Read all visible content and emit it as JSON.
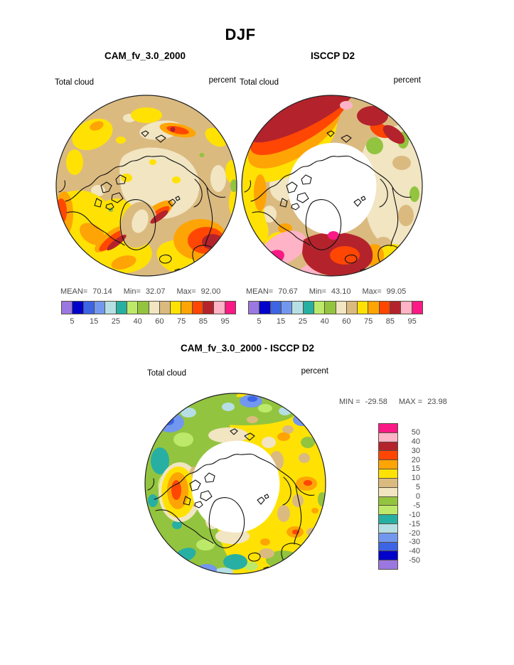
{
  "figure_title": "DJF",
  "panels": [
    {
      "id": "cam",
      "title": "CAM_fv_3.0_2000",
      "var_label": "Total cloud",
      "units": "percent",
      "stats": {
        "mean_label": "MEAN=",
        "mean": "70.14",
        "min_label": "Min=",
        "min": "32.07",
        "max_label": "Max=",
        "max": "92.00"
      }
    },
    {
      "id": "isccp",
      "title": "ISCCP D2",
      "var_label": "Total cloud",
      "units": "percent",
      "stats": {
        "mean_label": "MEAN=",
        "mean": "70.67",
        "min_label": "Min=",
        "min": "43.10",
        "max_label": "Max=",
        "max": "99.05"
      }
    },
    {
      "id": "diff",
      "title": "CAM_fv_3.0_2000 - ISCCP D2",
      "var_label": "Total cloud",
      "units": "percent",
      "stats": {
        "min_label": "MIN =",
        "min": "-29.58",
        "max_label": "MAX =",
        "max": "23.98"
      }
    }
  ],
  "colorbar": {
    "palette": [
      "#9B77E2",
      "#0202CB",
      "#3C64E4",
      "#7297EF",
      "#B5DFE4",
      "#27AFA3",
      "#BDE96A",
      "#93C43F",
      "#F1E5C2",
      "#DBBA80",
      "#FFE203",
      "#FFA405",
      "#FF4603",
      "#B4232C",
      "#FFB3C6",
      "#FB1986"
    ],
    "tick_labels": [
      "5",
      "15",
      "25",
      "40",
      "60",
      "75",
      "85",
      "95"
    ],
    "tick_positions": [
      1,
      3,
      5,
      7,
      9,
      11,
      13,
      15
    ],
    "diff_tick_labels": [
      "50",
      "40",
      "30",
      "20",
      "15",
      "10",
      "5",
      "0",
      "-5",
      "-10",
      "-15",
      "-20",
      "-30",
      "-40",
      "-50"
    ]
  },
  "chart_data": [
    {
      "type": "heatmap",
      "title": "CAM_fv_3.0_2000",
      "subtitle": "DJF",
      "variable": "Total cloud",
      "units": "percent",
      "projection": "north-polar-stereographic",
      "levels": [
        5,
        10,
        15,
        20,
        25,
        30,
        40,
        50,
        60,
        70,
        75,
        80,
        85,
        90,
        95
      ],
      "labeled_levels": [
        5,
        15,
        25,
        40,
        60,
        75,
        85,
        95
      ],
      "stats": {
        "mean": 70.14,
        "min": 32.07,
        "max": 92.0
      },
      "legend_position": "bottom"
    },
    {
      "type": "heatmap",
      "title": "ISCCP D2",
      "subtitle": "DJF",
      "variable": "Total cloud",
      "units": "percent",
      "projection": "north-polar-stereographic",
      "levels": [
        5,
        10,
        15,
        20,
        25,
        30,
        40,
        50,
        60,
        70,
        75,
        80,
        85,
        90,
        95
      ],
      "labeled_levels": [
        5,
        15,
        25,
        40,
        60,
        75,
        85,
        95
      ],
      "stats": {
        "mean": 70.67,
        "min": 43.1,
        "max": 99.05
      },
      "legend_position": "bottom",
      "note": "central polar cap has no data (white)"
    },
    {
      "type": "heatmap",
      "title": "CAM_fv_3.0_2000 - ISCCP D2",
      "subtitle": "DJF difference",
      "variable": "Total cloud",
      "units": "percent",
      "projection": "north-polar-stereographic",
      "levels": [
        -50,
        -40,
        -30,
        -20,
        -15,
        -10,
        -5,
        0,
        5,
        10,
        15,
        20,
        30,
        40,
        50
      ],
      "stats": {
        "min": -29.58,
        "max": 23.98
      },
      "legend_position": "right",
      "note": "central polar cap has no data (white)"
    }
  ]
}
